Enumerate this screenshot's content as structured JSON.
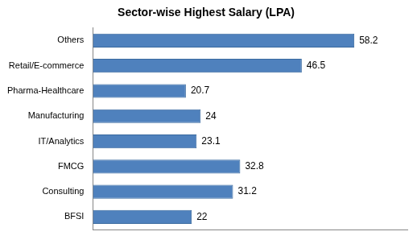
{
  "chart_data": {
    "type": "bar",
    "title": "Sector-wise Highest Salary (LPA)",
    "orientation": "horizontal",
    "categories": [
      "Others",
      "Retail/E-commerce",
      "Pharma-Healthcare",
      "Manufacturing",
      "IT/Analytics",
      "FMCG",
      "Consulting",
      "BFSI"
    ],
    "values": [
      58.2,
      46.5,
      20.7,
      24,
      23.1,
      32.8,
      31.2,
      22
    ],
    "color": "#4f81bd",
    "xlim": [
      0,
      70
    ],
    "grid": false,
    "data_labels": true,
    "tick_labels": "y"
  }
}
